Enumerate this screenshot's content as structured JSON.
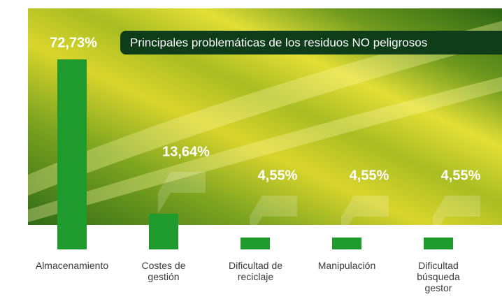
{
  "chart_data": {
    "type": "bar",
    "title": "Principales problemáticas de los residuos NO peligrosos",
    "categories": [
      "Almacenamiento",
      "Costes de gestión",
      "Dificultad de reciclaje",
      "Manipulación",
      "Dificultad búsqueda gestor"
    ],
    "values": [
      72.73,
      13.64,
      4.55,
      4.55,
      4.55
    ],
    "value_labels": [
      "72,73%",
      "13,64%",
      "4,55%",
      "4,55%",
      "4,55%"
    ],
    "color": "#1f9a2c"
  }
}
